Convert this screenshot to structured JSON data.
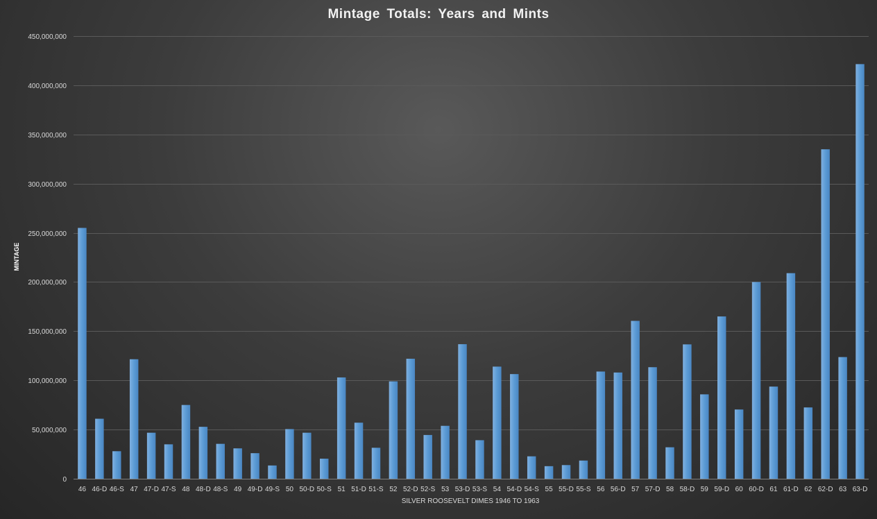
{
  "chart_data": {
    "type": "bar",
    "title": "Mintage Totals: Years and Mints",
    "xlabel": "SILVER ROOSEVELT DIMES 1946 TO 1963",
    "ylabel": "MINTAGE",
    "ylim": [
      0,
      450000000
    ],
    "yticks": [
      0,
      50000000,
      100000000,
      150000000,
      200000000,
      250000000,
      300000000,
      350000000,
      400000000,
      450000000
    ],
    "ytick_labels": [
      "0",
      "50,000,000",
      "100,000,000",
      "150,000,000",
      "200,000,000",
      "250,000,000",
      "300,000,000",
      "350,000,000",
      "400,000,000",
      "450,000,000"
    ],
    "grid": true,
    "legend": "none",
    "bar_color": "#5b9bd5",
    "categories": [
      "46",
      "46-D",
      "46-S",
      "47",
      "47-D",
      "47-S",
      "48",
      "48-D",
      "48-S",
      "49",
      "49-D",
      "49-S",
      "50",
      "50-D",
      "50-S",
      "51",
      "51-D",
      "51-S",
      "52",
      "52-D",
      "52-S",
      "53",
      "53-D",
      "53-S",
      "54",
      "54-D",
      "54-S",
      "55",
      "55-D",
      "55-S",
      "56",
      "56-D",
      "57",
      "57-D",
      "58",
      "58-D",
      "59",
      "59-D",
      "60",
      "60-D",
      "61",
      "61-D",
      "62",
      "62-D",
      "63",
      "63-D"
    ],
    "values": [
      255000000,
      61000000,
      28000000,
      121500000,
      46800000,
      35000000,
      75000000,
      52800000,
      35500000,
      30900000,
      26000000,
      13500000,
      50500000,
      46800000,
      20400000,
      103000000,
      57000000,
      31500000,
      99000000,
      122000000,
      44500000,
      53800000,
      136800000,
      39200000,
      114000000,
      106400000,
      22800000,
      12800000,
      13900000,
      18500000,
      109000000,
      108000000,
      160500000,
      113400000,
      32000000,
      136600000,
      85800000,
      165000000,
      70400000,
      200000000,
      93700000,
      209000000,
      72500000,
      334900000,
      123700000,
      421500000
    ]
  }
}
